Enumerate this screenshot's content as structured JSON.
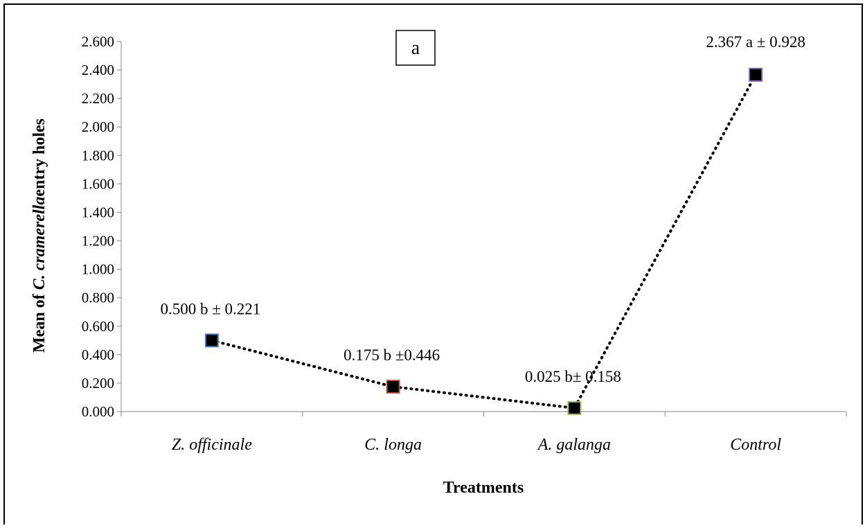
{
  "chart_data": {
    "type": "line",
    "title": "",
    "panel_label": "a",
    "xlabel": "Treatments",
    "ylabel_prefix": "Mean of ",
    "ylabel_italic": "C. cramerella",
    "ylabel_suffix": "entry holes",
    "ylim": [
      0,
      2.6
    ],
    "yticks": [
      "0.000",
      "0.200",
      "0.400",
      "0.600",
      "0.800",
      "1.000",
      "1.200",
      "1.400",
      "1.600",
      "1.800",
      "2.000",
      "2.200",
      "2.400",
      "2.600"
    ],
    "grid": false,
    "categories": [
      "Z. officinale",
      "C. longa",
      "A. galanga",
      "Control"
    ],
    "series": [
      {
        "values": [
          0.5,
          0.175,
          0.025,
          2.367
        ],
        "line_style": "dotted",
        "line_color": "#000000",
        "marker_fill": "#000000",
        "marker_edge_colors": [
          "#4f81bd",
          "#c0504d",
          "#9bbb59",
          "#8064a2"
        ]
      }
    ],
    "data_labels": [
      "0.500 b ± 0.221",
      "0.175 b ±0.446",
      "0.025 b± 0.158",
      "2.367 a ± 0.928"
    ]
  }
}
